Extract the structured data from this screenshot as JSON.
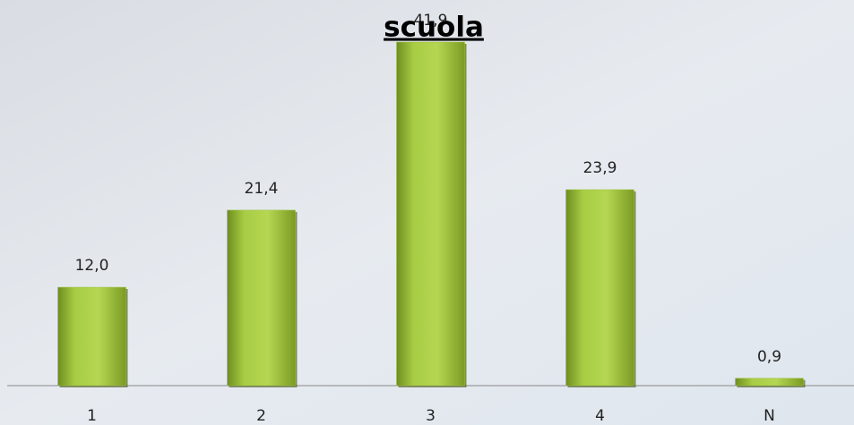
{
  "chart_data": {
    "type": "bar",
    "title": "scuola",
    "categories": [
      "1",
      "2",
      "3",
      "4",
      "N"
    ],
    "values": [
      12.0,
      21.4,
      41.9,
      23.9,
      0.9
    ],
    "value_labels": [
      "12,0",
      "21,4",
      "41,9",
      "23,9",
      "0,9"
    ],
    "color": "#9cc13a"
  }
}
